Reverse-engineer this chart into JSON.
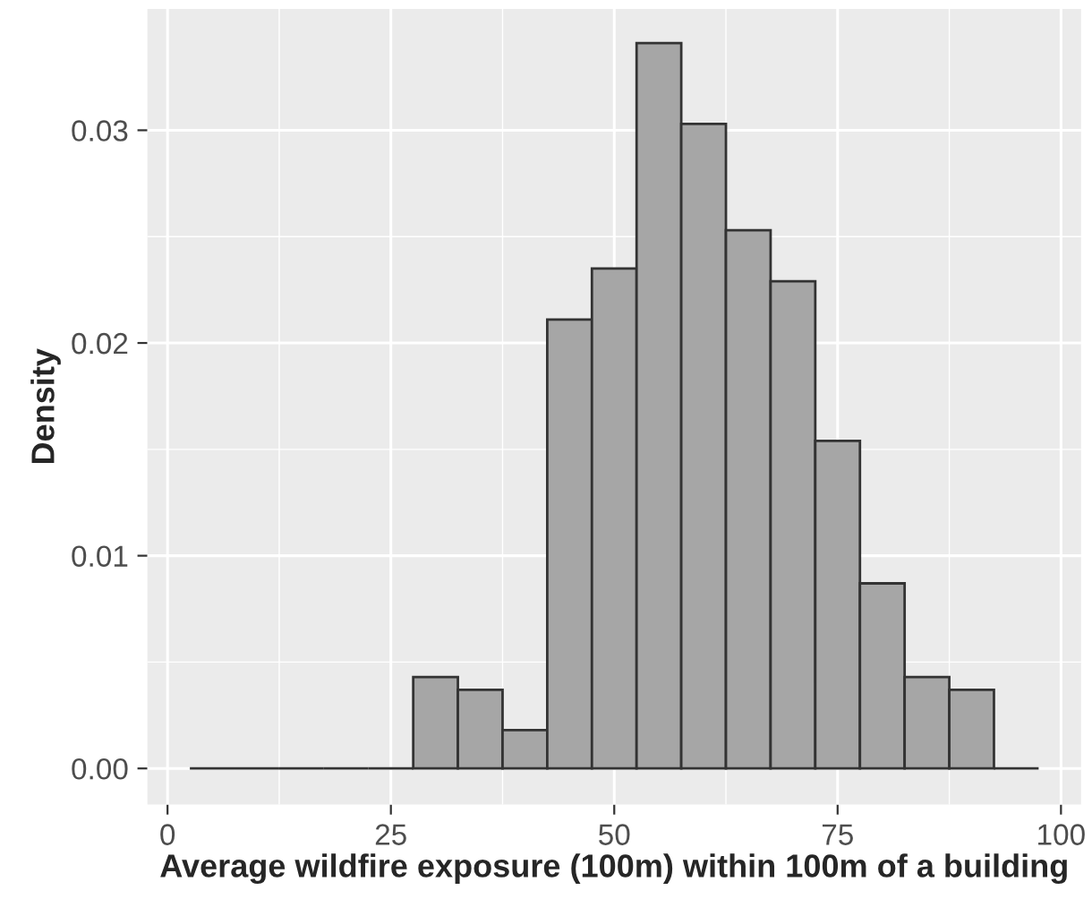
{
  "chart_data": {
    "type": "histogram",
    "xlabel": "Average wildfire exposure (100m) within 100m of a building",
    "ylabel": "Density",
    "bins": [
      2.5,
      7.5,
      12.5,
      17.5,
      22.5,
      27.5,
      32.5,
      37.5,
      42.5,
      47.5,
      52.5,
      57.5,
      62.5,
      67.5,
      72.5,
      77.5,
      82.5,
      87.5,
      92.5,
      97.5
    ],
    "values": [
      0,
      0,
      0,
      0,
      0,
      0.0043,
      0.0037,
      0.0018,
      0.0211,
      0.0235,
      0.0341,
      0.0303,
      0.0253,
      0.0229,
      0.0154,
      0.0087,
      0.0043,
      0.0037,
      0
    ],
    "colors": [
      "#333333",
      "#333333",
      "#333333",
      "#333333",
      "#333333",
      "#a6a6a6",
      "#a6a6a6",
      "#a6a6a6",
      "#a6a6a6",
      "#a6a6a6",
      "#a6a6a6",
      "#a6a6a6",
      "#a6a6a6",
      "#a6a6a6",
      "#a6a6a6",
      "#a6a6a6",
      "#a6a6a6",
      "#a6a6a6",
      "#333333"
    ],
    "xlim": [
      -2.25,
      102.25
    ],
    "xticks": [
      0,
      25,
      50,
      75,
      100
    ],
    "ylim": [
      -0.0017,
      0.0357
    ],
    "yticks": [
      {
        "value": 0,
        "label": "0.00"
      },
      {
        "value": 0.01,
        "label": "0.01"
      },
      {
        "value": 0.02,
        "label": "0.02"
      },
      {
        "value": 0.03,
        "label": "0.03"
      }
    ],
    "grid": true
  }
}
